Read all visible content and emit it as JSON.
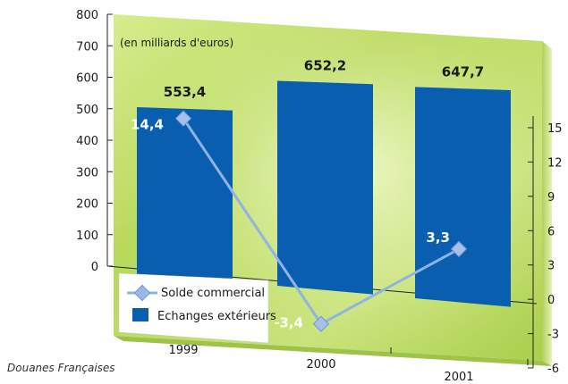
{
  "chart_data": {
    "type": "bar",
    "unit_note": "(en milliards d'euros)",
    "categories": [
      "1999",
      "2000",
      "2001"
    ],
    "series": [
      {
        "name": "Echanges extérieurs",
        "type": "bar",
        "axis": "left",
        "values": [
          553.4,
          652.2,
          647.7
        ],
        "labels": [
          "553,4",
          "652,2",
          "647,7"
        ],
        "color": "#0a5eb0"
      },
      {
        "name": "Solde commercial",
        "type": "line",
        "axis": "right",
        "values": [
          14.4,
          -3.4,
          3.3
        ],
        "labels": [
          "14,4",
          "-3,4",
          "3,3"
        ],
        "color": "#8fb4e3"
      }
    ],
    "left_axis": {
      "ticks": [
        0,
        100,
        200,
        300,
        400,
        500,
        600,
        700,
        800
      ],
      "ylim": [
        0,
        800
      ]
    },
    "right_axis": {
      "ticks": [
        -6,
        -3,
        0,
        3,
        6,
        9,
        12,
        15
      ],
      "ylim": [
        -6,
        18
      ]
    },
    "legend": "bottom-left",
    "source": "Douanes Françaises"
  }
}
